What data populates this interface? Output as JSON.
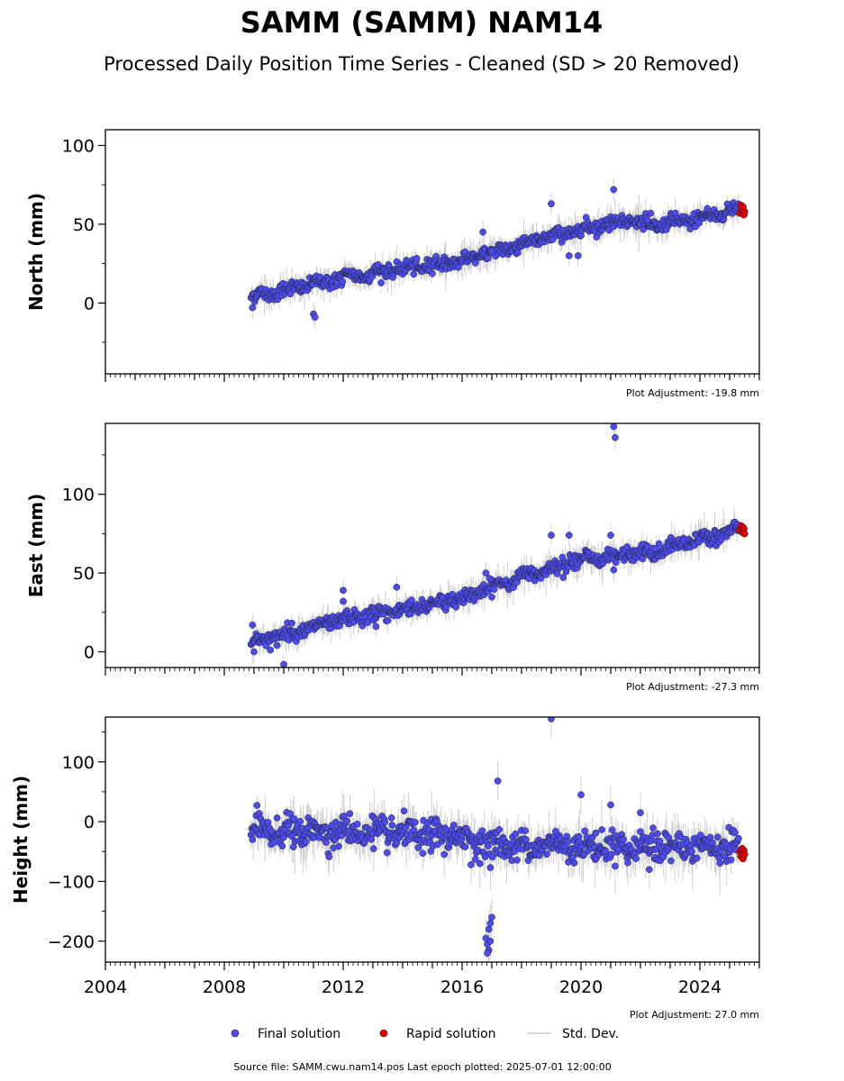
{
  "title": "SAMM (SAMM) NAM14",
  "subtitle": "Processed Daily Position Time Series - Cleaned (SD > 20 Removed)",
  "source_note": "Source file: SAMM.cwu.nam14.pos  Last epoch plotted: 2025-07-01 12:00:00",
  "legend": {
    "final": "Final solution",
    "rapid": "Rapid solution",
    "std": "Std. Dev."
  },
  "colors": {
    "final": "#4b4bf0",
    "rapid": "#e00000",
    "std": "#c8c8c8",
    "edge": "#222222"
  },
  "x_tick_labels": [
    "2004",
    "2008",
    "2012",
    "2016",
    "2020",
    "2024"
  ],
  "chart_data": [
    {
      "type": "scatter",
      "ylabel": "North (mm)",
      "plot_adjustment": "Plot Adjustment: -19.8 mm",
      "xlim": [
        2004.0,
        2026.0
      ],
      "ylim": [
        -45,
        110
      ],
      "yticks": [
        {
          "v": 100,
          "label": "100"
        },
        {
          "v": 50,
          "label": "50"
        },
        {
          "v": 0,
          "label": "0"
        }
      ],
      "ymin_ticks": [
        -25,
        25,
        75
      ],
      "trend": [
        [
          2008.9,
          4
        ],
        [
          2012.0,
          16
        ],
        [
          2016.0,
          27
        ],
        [
          2018.5,
          40
        ],
        [
          2020.0,
          47
        ],
        [
          2021.5,
          53
        ],
        [
          2022.5,
          49
        ],
        [
          2024.0,
          54
        ],
        [
          2025.4,
          60
        ]
      ],
      "scatter": 2.2,
      "noise_sd": 1.8,
      "outliers": [
        [
          2011.0,
          -7
        ],
        [
          2011.05,
          -9
        ],
        [
          2016.7,
          45
        ],
        [
          2019.0,
          63
        ],
        [
          2019.6,
          30
        ],
        [
          2019.9,
          30
        ],
        [
          2021.1,
          72
        ],
        [
          2017.0,
          33
        ],
        [
          2008.95,
          -3
        ]
      ],
      "rapid": [
        [
          2025.35,
          57
        ],
        [
          2025.38,
          62
        ],
        [
          2025.42,
          59
        ],
        [
          2025.45,
          61
        ],
        [
          2025.48,
          56
        ],
        [
          2025.5,
          58
        ]
      ]
    },
    {
      "type": "scatter",
      "ylabel": "East (mm)",
      "plot_adjustment": "Plot Adjustment: -27.3 mm",
      "xlim": [
        2004.0,
        2026.0
      ],
      "ylim": [
        -10,
        145
      ],
      "yticks": [
        {
          "v": 100,
          "label": "100"
        },
        {
          "v": 50,
          "label": "50"
        },
        {
          "v": 0,
          "label": "0"
        }
      ],
      "ymin_ticks": [
        25,
        75,
        125
      ],
      "trend": [
        [
          2008.9,
          6
        ],
        [
          2012.0,
          20
        ],
        [
          2016.0,
          34
        ],
        [
          2018.5,
          51
        ],
        [
          2020.0,
          59
        ],
        [
          2022.5,
          63
        ],
        [
          2024.0,
          72
        ],
        [
          2025.4,
          78
        ]
      ],
      "scatter": 2.3,
      "noise_sd": 1.8,
      "outliers": [
        [
          2008.95,
          17
        ],
        [
          2009.0,
          0
        ],
        [
          2010.0,
          -8
        ],
        [
          2012.0,
          39
        ],
        [
          2012.0,
          32
        ],
        [
          2013.1,
          16
        ],
        [
          2013.8,
          41
        ],
        [
          2016.8,
          50
        ],
        [
          2019.0,
          74
        ],
        [
          2019.6,
          74
        ],
        [
          2021.1,
          143
        ],
        [
          2021.15,
          136
        ],
        [
          2021.1,
          52
        ],
        [
          2021.0,
          74
        ]
      ],
      "rapid": [
        [
          2025.35,
          77
        ],
        [
          2025.38,
          80
        ],
        [
          2025.42,
          76
        ],
        [
          2025.45,
          79
        ],
        [
          2025.48,
          78
        ],
        [
          2025.5,
          75
        ]
      ]
    },
    {
      "type": "scatter",
      "ylabel": "Height (mm)",
      "plot_adjustment": "Plot Adjustment: 27.0 mm",
      "xlim": [
        2004.0,
        2026.0
      ],
      "ylim": [
        -235,
        175
      ],
      "yticks": [
        {
          "v": 100,
          "label": "100"
        },
        {
          "v": 0,
          "label": "0"
        },
        {
          "v": -100,
          "label": "−100"
        },
        {
          "v": -200,
          "label": "−200"
        }
      ],
      "ymin_ticks": [
        150,
        50,
        -50,
        -150
      ],
      "trend": [
        [
          2008.9,
          -15
        ],
        [
          2012.0,
          -18
        ],
        [
          2016.0,
          -25
        ],
        [
          2017.0,
          -40
        ],
        [
          2020.0,
          -40
        ],
        [
          2025.4,
          -45
        ]
      ],
      "scatter": 12,
      "noise_sd": 8,
      "outliers": [
        [
          2016.8,
          -195
        ],
        [
          2016.85,
          -205
        ],
        [
          2016.9,
          -215
        ],
        [
          2016.9,
          -180
        ],
        [
          2016.95,
          -170
        ],
        [
          2017.0,
          -160
        ],
        [
          2016.85,
          -220
        ],
        [
          2016.95,
          -200
        ],
        [
          2017.2,
          68
        ],
        [
          2019.0,
          172
        ],
        [
          2020.0,
          45
        ],
        [
          2021.0,
          28
        ],
        [
          2022.0,
          15
        ],
        [
          2016.3,
          -72
        ],
        [
          2022.3,
          -80
        ]
      ],
      "rapid": [
        [
          2025.35,
          -50
        ],
        [
          2025.38,
          -58
        ],
        [
          2025.42,
          -45
        ],
        [
          2025.45,
          -62
        ],
        [
          2025.48,
          -48
        ],
        [
          2025.5,
          -55
        ]
      ]
    }
  ]
}
